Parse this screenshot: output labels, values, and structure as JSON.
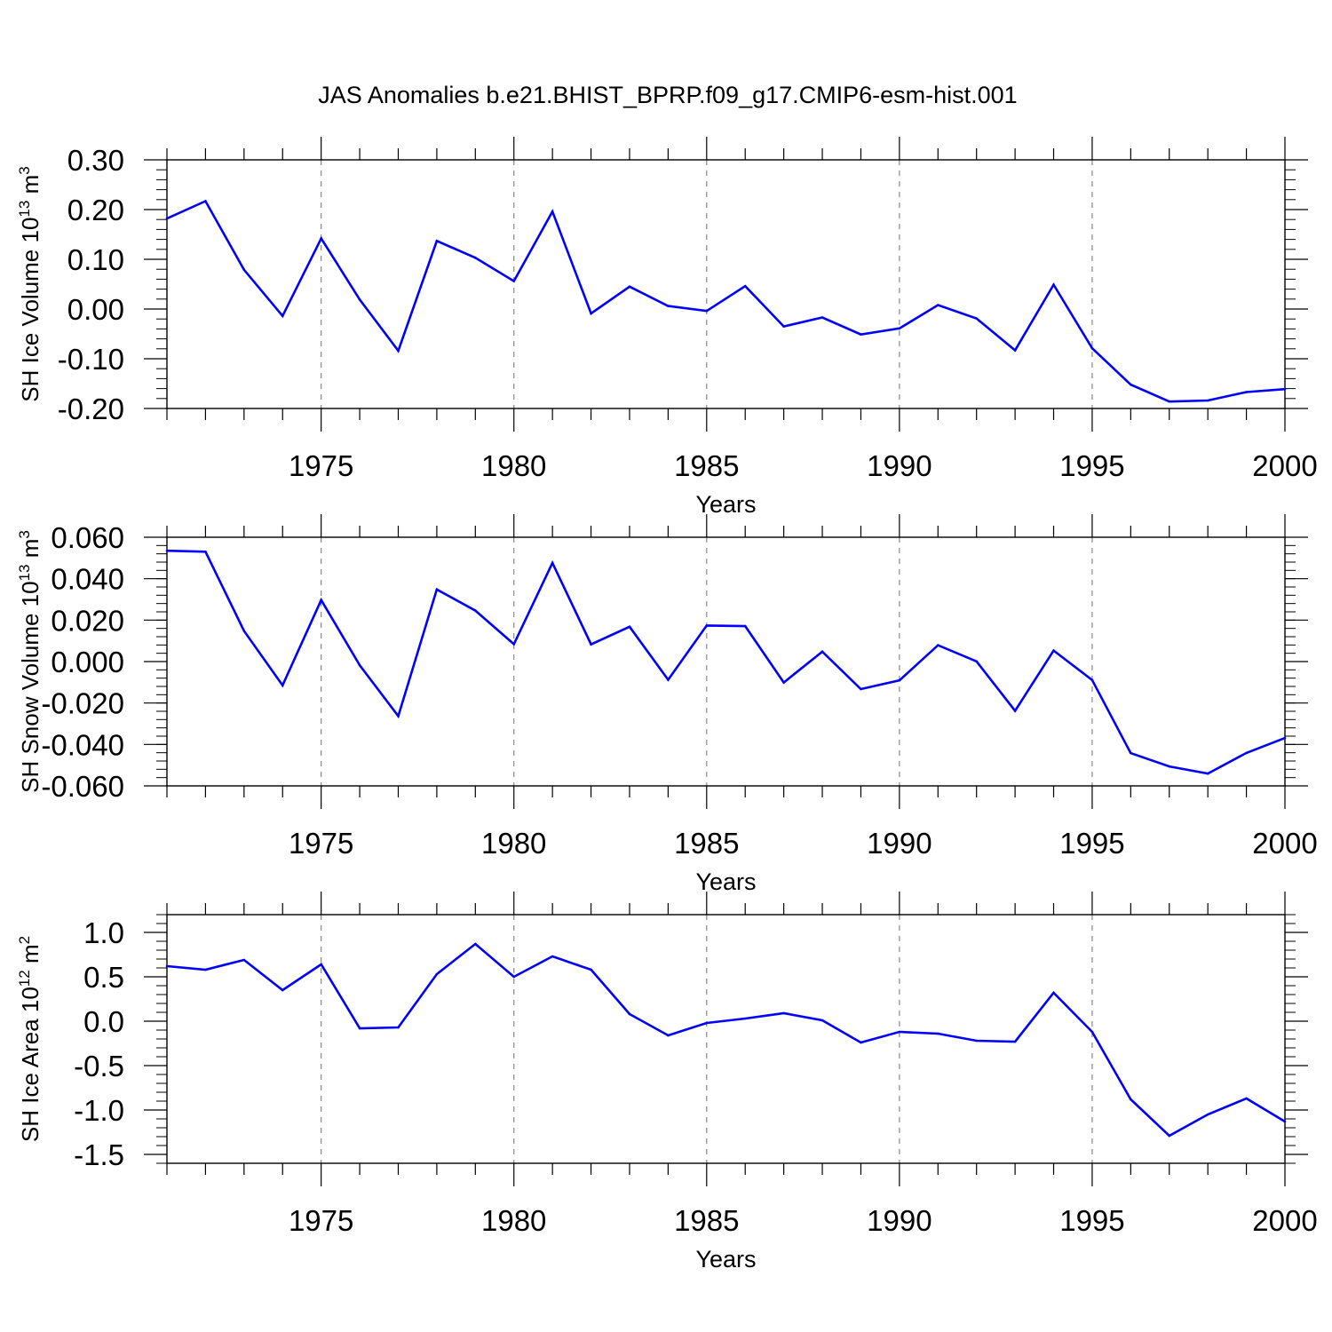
{
  "title": "JAS Anomalies b.e21.BHIST_BPRP.f09_g17.CMIP6-esm-hist.001",
  "chart_data": [
    {
      "type": "line",
      "ylabel": {
        "text": "SH Ice Volume 10",
        "exp": "13",
        "unit": " m",
        "unit_exp": "3"
      },
      "xlabel": "Years",
      "xlim": [
        1971,
        2000
      ],
      "ylim": [
        -0.2,
        0.3
      ],
      "yticks": [
        -0.2,
        -0.1,
        0.0,
        0.1,
        0.2,
        0.3
      ],
      "ytick_labels": [
        "-0.20",
        "-0.10",
        "0.00",
        "0.10",
        "0.20",
        "0.30"
      ],
      "yminor_step": 0.02,
      "xticks": [
        1975,
        1980,
        1985,
        1990,
        1995,
        2000
      ],
      "xtick_labels": [
        "1975",
        "1980",
        "1985",
        "1990",
        "1995",
        "2000"
      ],
      "grid": "vertical-dashed",
      "color": "#0000ff",
      "x": [
        1971,
        1972,
        1973,
        1974,
        1975,
        1976,
        1977,
        1978,
        1979,
        1980,
        1981,
        1982,
        1983,
        1984,
        1985,
        1986,
        1987,
        1988,
        1989,
        1990,
        1991,
        1992,
        1993,
        1994,
        1995,
        1996,
        1997,
        1998,
        1999,
        2000
      ],
      "values": [
        0.182,
        0.217,
        0.079,
        -0.014,
        0.142,
        0.019,
        -0.084,
        0.137,
        0.103,
        0.056,
        0.196,
        -0.009,
        0.045,
        0.006,
        -0.004,
        0.046,
        -0.035,
        -0.017,
        -0.051,
        -0.039,
        0.008,
        -0.019,
        -0.083,
        0.049,
        -0.079,
        -0.152,
        -0.186,
        -0.184,
        -0.167,
        -0.161
      ]
    },
    {
      "type": "line",
      "ylabel": {
        "text": "SH Snow Volume 10",
        "exp": "13",
        "unit": " m",
        "unit_exp": "3"
      },
      "xlabel": "Years",
      "xlim": [
        1971,
        2000
      ],
      "ylim": [
        -0.06,
        0.06
      ],
      "yticks": [
        -0.06,
        -0.04,
        -0.02,
        0.0,
        0.02,
        0.04,
        0.06
      ],
      "ytick_labels": [
        "-0.060",
        "-0.040",
        "-0.020",
        "0.000",
        "0.020",
        "0.040",
        "0.060"
      ],
      "yminor_step": 0.004,
      "xticks": [
        1975,
        1980,
        1985,
        1990,
        1995,
        2000
      ],
      "xtick_labels": [
        "1975",
        "1980",
        "1985",
        "1990",
        "1995",
        "2000"
      ],
      "grid": "vertical-dashed",
      "color": "#0000ff",
      "x": [
        1971,
        1972,
        1973,
        1974,
        1975,
        1976,
        1977,
        1978,
        1979,
        1980,
        1981,
        1982,
        1983,
        1984,
        1985,
        1986,
        1987,
        1988,
        1989,
        1990,
        1991,
        1992,
        1993,
        1994,
        1995,
        1996,
        1997,
        1998,
        1999,
        2000
      ],
      "values": [
        0.0535,
        0.053,
        0.0148,
        -0.0115,
        0.0297,
        -0.0018,
        -0.0263,
        0.0348,
        0.0246,
        0.0084,
        0.0476,
        0.0083,
        0.0168,
        -0.0088,
        0.0174,
        0.0171,
        -0.0101,
        0.0048,
        -0.0133,
        -0.0091,
        0.0079,
        0.0001,
        -0.0238,
        0.0053,
        -0.0089,
        -0.0442,
        -0.0506,
        -0.0541,
        -0.0441,
        -0.0369
      ]
    },
    {
      "type": "line",
      "ylabel": {
        "text": "SH Ice Area 10",
        "exp": "12",
        "unit": " m",
        "unit_exp": "2"
      },
      "xlabel": "Years",
      "xlim": [
        1971,
        2000
      ],
      "ylim": [
        -1.6,
        1.2
      ],
      "yticks": [
        -1.5,
        -1.0,
        -0.5,
        0.0,
        0.5,
        1.0
      ],
      "ytick_labels": [
        "-1.5",
        "-1.0",
        "-0.5",
        "0.0",
        "0.5",
        "1.0"
      ],
      "yminor_step": 0.1,
      "xticks": [
        1975,
        1980,
        1985,
        1990,
        1995,
        2000
      ],
      "xtick_labels": [
        "1975",
        "1980",
        "1985",
        "1990",
        "1995",
        "2000"
      ],
      "grid": "vertical-dashed",
      "color": "#0000ff",
      "x": [
        1971,
        1972,
        1973,
        1974,
        1975,
        1976,
        1977,
        1978,
        1979,
        1980,
        1981,
        1982,
        1983,
        1984,
        1985,
        1986,
        1987,
        1988,
        1989,
        1990,
        1991,
        1992,
        1993,
        1994,
        1995,
        1996,
        1997,
        1998,
        1999,
        2000
      ],
      "values": [
        0.62,
        0.58,
        0.69,
        0.35,
        0.64,
        -0.08,
        -0.07,
        0.53,
        0.87,
        0.5,
        0.73,
        0.58,
        0.08,
        -0.16,
        -0.02,
        0.03,
        0.09,
        0.01,
        -0.24,
        -0.12,
        -0.14,
        -0.22,
        -0.23,
        0.32,
        -0.12,
        -0.88,
        -1.29,
        -1.05,
        -0.87,
        -1.13
      ]
    }
  ]
}
